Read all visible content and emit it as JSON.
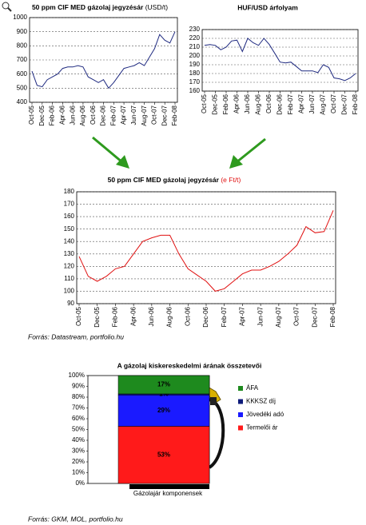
{
  "chart_data": [
    {
      "type": "line",
      "title": "50 ppm CIF MED gázolaj jegyzésár",
      "title_unit": "(USD/t)",
      "color": "#1f2a80",
      "categories": [
        "Oct-05",
        null,
        "Dec-05",
        null,
        "Feb-06",
        null,
        "Apr-06",
        null,
        "Jun-06",
        null,
        "Aug-06",
        null,
        "Oct-06",
        null,
        "Dec-06",
        null,
        "Feb-07",
        null,
        "Apr-07",
        null,
        "Jun-07",
        null,
        "Aug-07",
        null,
        "Oct-07",
        null,
        "Dec-07",
        null,
        "Feb-08"
      ],
      "values": [
        620,
        520,
        510,
        560,
        580,
        600,
        640,
        650,
        650,
        660,
        650,
        580,
        560,
        540,
        560,
        500,
        540,
        590,
        640,
        650,
        660,
        680,
        660,
        720,
        780,
        880,
        840,
        820,
        900
      ],
      "ylim": [
        400,
        1000
      ],
      "yticks": [
        400,
        500,
        600,
        700,
        800,
        900,
        1000
      ],
      "grid": true
    },
    {
      "type": "line",
      "title": "HUF/USD árfolyam",
      "color": "#1f2a80",
      "categories": [
        "Oct-05",
        null,
        "Dec-05",
        null,
        "Feb-06",
        null,
        "Apr-06",
        null,
        "Jun-06",
        null,
        "Aug-06",
        null,
        "Oct-06",
        null,
        "Dec-06",
        null,
        "Feb-07",
        null,
        "Apr-07",
        null,
        "Jun-07",
        null,
        "Aug-07",
        null,
        "Oct-07",
        null,
        "Dec-07",
        null,
        "Feb-08"
      ],
      "values": [
        212,
        213,
        212,
        207,
        210,
        217,
        218,
        205,
        220,
        215,
        212,
        220,
        213,
        203,
        193,
        192,
        193,
        188,
        183,
        183,
        183,
        181,
        190,
        187,
        175,
        174,
        172,
        175,
        180
      ],
      "ylim": [
        160,
        230
      ],
      "yticks": [
        160,
        170,
        180,
        190,
        200,
        210,
        220,
        230
      ],
      "grid": true
    },
    {
      "type": "line",
      "title": "50 ppm CIF MED gázolaj jegyzésár",
      "title_unit": "(e Ft/t)",
      "color": "#e01010",
      "categories": [
        "Oct-05",
        null,
        "Dec-05",
        null,
        "Feb-06",
        null,
        "Apr-06",
        null,
        "Jun-06",
        null,
        "Aug-06",
        null,
        "Oct-06",
        null,
        "Dec-06",
        null,
        "Feb-07",
        null,
        "Apr-07",
        null,
        "Jun-07",
        null,
        "Aug-07",
        null,
        "Oct-07",
        null,
        "Dec-07",
        null,
        "Feb-08"
      ],
      "values": [
        128,
        112,
        108,
        112,
        118,
        120,
        130,
        140,
        143,
        145,
        145,
        130,
        118,
        113,
        108,
        100,
        102,
        108,
        114,
        117,
        117,
        120,
        124,
        130,
        137,
        152,
        147,
        148,
        165
      ],
      "ylim": [
        90,
        180
      ],
      "yticks": [
        90,
        100,
        110,
        120,
        130,
        140,
        150,
        160,
        170,
        180
      ],
      "grid": true,
      "source": "Forrás: Datastream, portfolio.hu"
    },
    {
      "type": "bar",
      "title": "A gázolaj kiskereskedelmi árának összetevői",
      "categories": [
        "Gázolajár komponensek"
      ],
      "series": [
        {
          "name": "Termelői ár",
          "color": "#ff1a1a",
          "values": [
            53
          ],
          "value_labels": [
            "53%"
          ]
        },
        {
          "name": "Jövedéki adó",
          "color": "#1a1aff",
          "values": [
            29
          ],
          "value_labels": [
            "29%"
          ]
        },
        {
          "name": "KKKSZ díj",
          "color": "#0d1a7a",
          "values": [
            1
          ],
          "value_labels": [
            "1%"
          ]
        },
        {
          "name": "ÁFA",
          "color": "#1e8a1e",
          "values": [
            17
          ],
          "value_labels": [
            "17%"
          ]
        }
      ],
      "ylim": [
        0,
        100
      ],
      "yticks": [
        {
          "value": 0,
          "label": "0%"
        },
        {
          "value": 10,
          "label": "10%"
        },
        {
          "value": 20,
          "label": "20%"
        },
        {
          "value": 30,
          "label": "30%"
        },
        {
          "value": 40,
          "label": "40%"
        },
        {
          "value": 50,
          "label": "50%"
        },
        {
          "value": 60,
          "label": "60%"
        },
        {
          "value": 70,
          "label": "70%"
        },
        {
          "value": 80,
          "label": "80%"
        },
        {
          "value": 90,
          "label": "90%"
        },
        {
          "value": 100,
          "label": "100%"
        }
      ],
      "source": "Forrás: GKM, MOL, portfolio.hu"
    }
  ]
}
